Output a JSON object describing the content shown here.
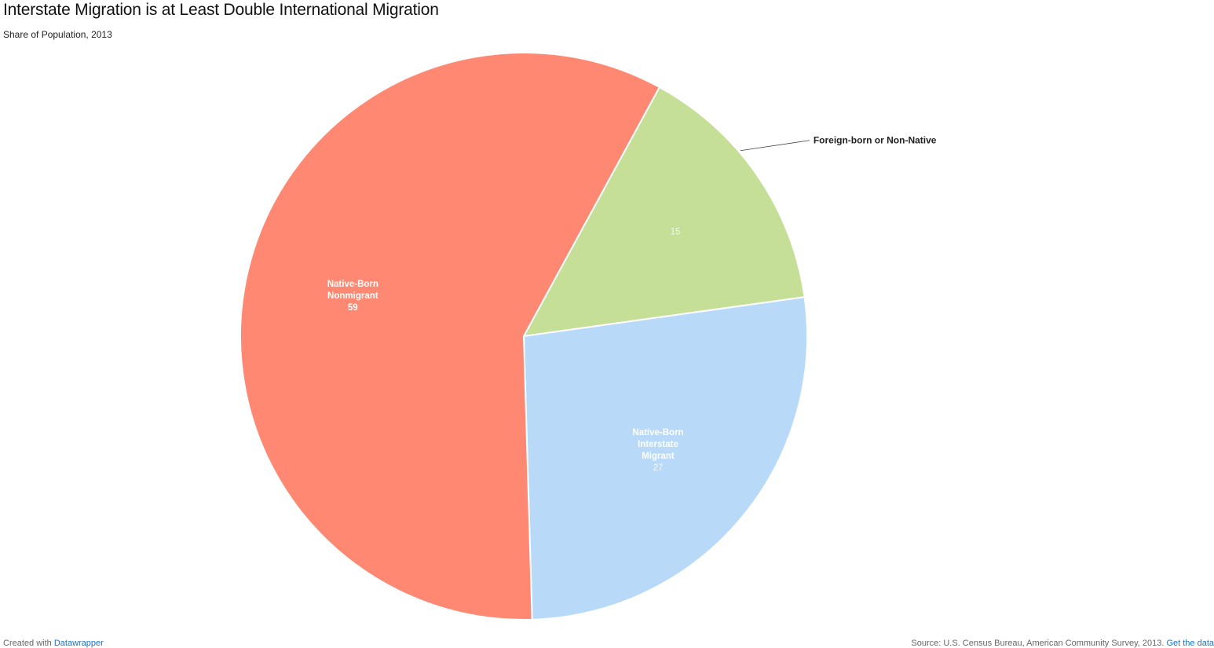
{
  "header": {
    "title": "Interstate Migration is at Least Double International Migration",
    "subtitle": "Share of Population, 2013"
  },
  "footer": {
    "created_prefix": "Created with",
    "created_link": "Datawrapper",
    "source_text": "Source: U.S. Census Bureau, American Community Survey, 2013.",
    "get_data_link": "Get the data"
  },
  "colors": {
    "native_born_nonmigrant": "#ff8873",
    "foreign_born": "#c5df96",
    "native_born_interstate": "#b8daf8",
    "slice_border": "#ffffff"
  },
  "chart_data": {
    "type": "pie",
    "title": "Interstate Migration is at Least Double International Migration",
    "subtitle": "Share of Population, 2013",
    "slices": [
      {
        "label": "Foreign-born or Non-Native",
        "value": 15,
        "color": "#c5df96",
        "label_position": "outside"
      },
      {
        "label": "Native-Born Interstate Migrant",
        "label_lines": [
          "Native-Born",
          "Interstate",
          "Migrant"
        ],
        "value": 27,
        "color": "#b8daf8",
        "label_position": "inside"
      },
      {
        "label": "Native-Born Nonmigrant",
        "label_lines": [
          "Native-Born",
          "Nonmigrant"
        ],
        "value": 59,
        "color": "#ff8873",
        "label_position": "inside"
      }
    ]
  }
}
